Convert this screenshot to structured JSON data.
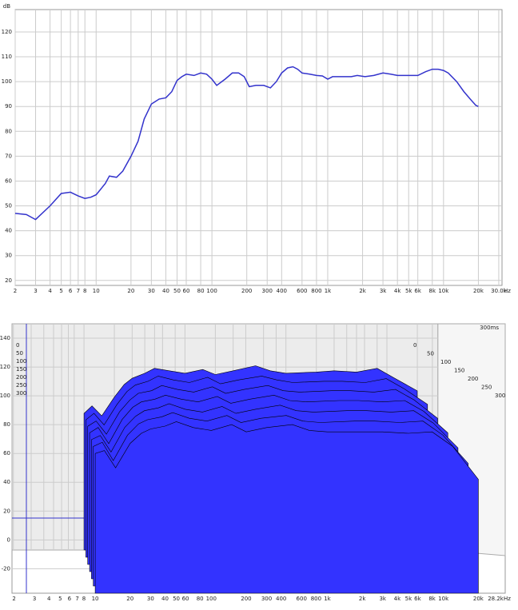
{
  "chart_data": [
    {
      "type": "line",
      "ylabel": "dB",
      "xlabel": "Hz",
      "xscale": "log",
      "grid": true,
      "xlim": [
        2,
        32000
      ],
      "ylim": [
        18,
        129
      ],
      "yticks": [
        20,
        30,
        40,
        50,
        60,
        70,
        80,
        90,
        100,
        110,
        120
      ],
      "xticks": [
        2,
        3,
        4,
        5,
        6,
        7,
        8,
        10,
        20,
        30,
        40,
        50,
        60,
        80,
        100,
        200,
        300,
        400,
        600,
        800,
        {
          "value": 1000,
          "label": "1k"
        },
        {
          "value": 2000,
          "label": "2k"
        },
        {
          "value": 3000,
          "label": "3k"
        },
        {
          "value": 4000,
          "label": "4k"
        },
        {
          "value": 5000,
          "label": "5k"
        },
        {
          "value": 6000,
          "label": "6k"
        },
        {
          "value": 8000,
          "label": "8k"
        },
        {
          "value": 10000,
          "label": "10k"
        },
        {
          "value": 20000,
          "label": "20k"
        },
        {
          "value": 30000,
          "label": "30.0k"
        }
      ],
      "x": [
        2,
        2.5,
        3,
        4,
        5,
        6,
        7,
        8,
        9,
        10,
        12,
        13,
        15,
        17,
        20,
        23,
        26,
        30,
        35,
        40,
        45,
        50,
        55,
        60,
        70,
        80,
        90,
        100,
        110,
        130,
        150,
        170,
        190,
        210,
        240,
        280,
        320,
        360,
        400,
        450,
        500,
        550,
        600,
        700,
        800,
        900,
        1000,
        1100,
        1300,
        1600,
        1800,
        2100,
        2500,
        3000,
        3500,
        4000,
        5000,
        6000,
        7000,
        8000,
        9000,
        10000,
        11000,
        13000,
        15000,
        17000,
        19000,
        20000
      ],
      "series": [
        {
          "color": "#3333cc",
          "values": [
            47,
            46.5,
            44.5,
            50,
            55,
            55.5,
            54,
            53,
            53.5,
            54.5,
            59,
            62,
            61.5,
            64,
            70,
            76,
            85,
            91,
            93,
            93.5,
            96,
            100.5,
            102,
            103,
            102.5,
            103.5,
            103,
            101,
            98.5,
            101,
            103.5,
            103.5,
            102,
            98,
            98.5,
            98.5,
            97.5,
            100,
            103.5,
            105.5,
            106,
            105,
            103.5,
            103,
            102.5,
            102.3,
            101,
            102,
            102,
            102,
            102.5,
            102,
            102.5,
            103.5,
            103,
            102.5,
            102.5,
            102.5,
            104,
            105,
            105,
            104.5,
            103.5,
            100,
            96,
            93,
            90.5,
            90
          ]
        }
      ]
    },
    {
      "type": "waterfall",
      "xlabel": "Hz",
      "depth_label": "300ms",
      "xscale": "log",
      "grid": true,
      "xlim": [
        1.92,
        32000
      ],
      "ylim": [
        -37,
        150
      ],
      "yticks": [
        -20,
        0,
        20,
        40,
        60,
        80,
        100,
        120,
        140
      ],
      "xticks": [
        2,
        3,
        4,
        5,
        6,
        7,
        8,
        10,
        20,
        30,
        40,
        50,
        60,
        80,
        100,
        200,
        300,
        400,
        600,
        800,
        {
          "value": 1000,
          "label": "1k"
        },
        {
          "value": 2000,
          "label": "2k"
        },
        {
          "value": 3000,
          "label": "3k"
        },
        {
          "value": 4000,
          "label": "4k"
        },
        {
          "value": 5000,
          "label": "5k"
        },
        {
          "value": 6000,
          "label": "6k"
        },
        {
          "value": 8000,
          "label": "8k"
        },
        {
          "value": 10000,
          "label": "10k"
        },
        {
          "value": 20000,
          "label": "20k"
        },
        {
          "value": 28200,
          "label": "28.2k"
        }
      ],
      "x": [
        10,
        12,
        15,
        20,
        25,
        30,
        40,
        50,
        70,
        100,
        150,
        200,
        300,
        500,
        700,
        1000,
        2000,
        3000,
        5000,
        8000,
        12000,
        20000
      ],
      "color": "#3333ff",
      "series": [
        {
          "name": "0",
          "values": [
            72,
            78,
            70,
            85,
            95,
            100,
            104,
            108,
            106,
            104,
            107,
            103,
            106,
            110,
            106,
            104,
            105,
            106,
            105,
            108,
            100,
            90
          ]
        },
        {
          "name": "50",
          "values": [
            70,
            75,
            66,
            82,
            92,
            97,
            100,
            104,
            101,
            99,
            103,
            98,
            101,
            104,
            101,
            99,
            100,
            100,
            99,
            102,
            94,
            82
          ]
        },
        {
          "name": "100",
          "values": [
            68,
            72,
            62,
            79,
            88,
            93,
            95,
            99,
            96,
            94,
            98,
            93,
            96,
            99,
            95,
            94,
            95,
            95,
            94,
            96,
            88,
            74
          ]
        },
        {
          "name": "150",
          "values": [
            66,
            70,
            58,
            76,
            85,
            89,
            91,
            94,
            91,
            89,
            93,
            88,
            91,
            94,
            90,
            89,
            90,
            90,
            89,
            90,
            82,
            66
          ]
        },
        {
          "name": "200",
          "values": [
            64,
            67,
            55,
            73,
            81,
            85,
            87,
            90,
            86,
            84,
            88,
            83,
            86,
            89,
            85,
            84,
            85,
            85,
            84,
            85,
            76,
            58
          ]
        },
        {
          "name": "250",
          "values": [
            62,
            65,
            52,
            70,
            78,
            81,
            83,
            86,
            82,
            80,
            84,
            79,
            82,
            84,
            80,
            79,
            80,
            80,
            79,
            80,
            70,
            50
          ]
        },
        {
          "name": "300",
          "values": [
            60,
            62,
            50,
            67,
            74,
            77,
            79,
            82,
            78,
            76,
            80,
            75,
            78,
            80,
            76,
            75,
            75,
            75,
            74,
            75,
            65,
            42
          ]
        }
      ]
    }
  ]
}
